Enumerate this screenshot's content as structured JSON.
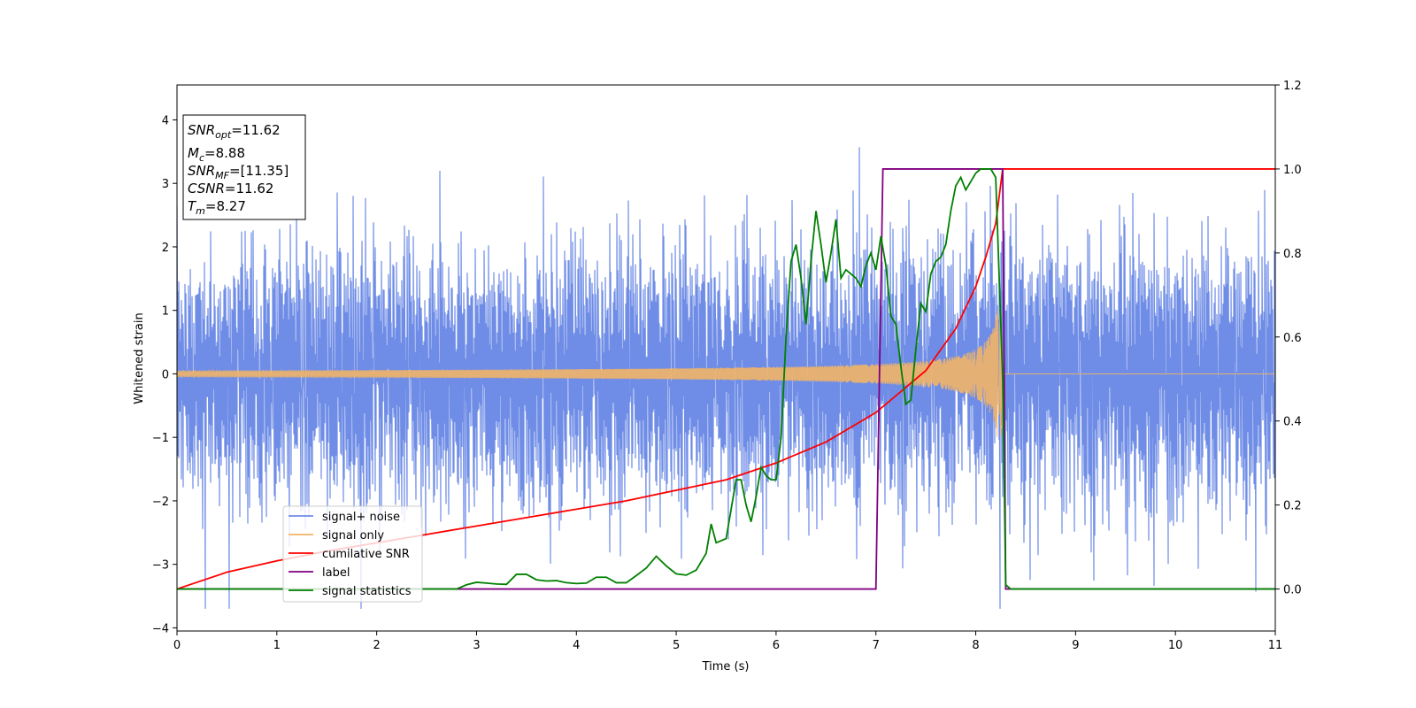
{
  "chart_data": {
    "type": "line",
    "xlabel": "Time (s)",
    "ylabel": "Whitened strain",
    "xlim": [
      0,
      11
    ],
    "ylim_left": [
      -4.05,
      4.55
    ],
    "ylim_right": [
      -0.1,
      1.2
    ],
    "x_ticks": [
      0,
      1,
      2,
      3,
      4,
      5,
      6,
      7,
      8,
      9,
      10,
      11
    ],
    "y_left_ticks": [
      -4,
      -3,
      -2,
      -1,
      0,
      1,
      2,
      3,
      4
    ],
    "y_right_ticks": [
      "0.0",
      "0.2",
      "0.4",
      "0.6",
      "0.8",
      "1.0",
      "1.2"
    ],
    "grid": false,
    "legend_position": "lower-left",
    "colors": {
      "signal_noise": "#6f8de6",
      "signal_only": "#f2b466",
      "cumulative_snr": "#ff0000",
      "label": "#800080",
      "signal_statistics": "#008000"
    },
    "annotation": {
      "lines": [
        {
          "base": "SNR",
          "sub": "opt",
          "value": "=11.62"
        },
        {
          "base": "M",
          "sub": "c",
          "value": "=8.88"
        },
        {
          "base": "SNR",
          "sub": "MF",
          "value": "=[11.35]"
        },
        {
          "base": "CSNR",
          "sub": "",
          "value": "=11.62"
        },
        {
          "base": "T",
          "sub": "m",
          "value": "=8.27"
        }
      ]
    },
    "series": [
      {
        "name": "signal+ noise",
        "axis": "left",
        "description_range": [
          -3.7,
          4.1
        ],
        "noise_std": 1.0,
        "t_end": 11
      },
      {
        "name": "signal only",
        "axis": "left",
        "chirp_merger_time": 8.27,
        "peak_amplitude": 1.0,
        "start_amplitude": 0.05
      },
      {
        "name": "cumilative SNR",
        "axis": "right",
        "x": [
          0,
          0.5,
          1,
          1.5,
          2,
          2.5,
          3,
          3.5,
          4,
          4.5,
          5,
          5.5,
          6,
          6.5,
          7,
          7.5,
          7.8,
          8.0,
          8.1,
          8.2,
          8.27,
          8.3,
          11
        ],
        "y": [
          0.0,
          0.04,
          0.067,
          0.09,
          0.11,
          0.13,
          0.15,
          0.17,
          0.19,
          0.21,
          0.235,
          0.26,
          0.3,
          0.35,
          0.42,
          0.52,
          0.62,
          0.72,
          0.79,
          0.87,
          1.0,
          1.0,
          1.0
        ]
      },
      {
        "name": "label",
        "axis": "right",
        "x": [
          0,
          7.0,
          7.07,
          8.27,
          8.3,
          11
        ],
        "y": [
          0,
          0,
          1,
          1,
          0,
          0
        ]
      },
      {
        "name": "signal statistics",
        "axis": "right",
        "x": [
          0,
          1,
          2,
          2.8,
          2.9,
          3.0,
          3.1,
          3.2,
          3.3,
          3.4,
          3.5,
          3.6,
          3.7,
          3.8,
          3.9,
          4.0,
          4.1,
          4.2,
          4.3,
          4.4,
          4.5,
          4.6,
          4.7,
          4.8,
          4.9,
          5.0,
          5.1,
          5.2,
          5.3,
          5.35,
          5.4,
          5.5,
          5.6,
          5.65,
          5.7,
          5.75,
          5.8,
          5.85,
          5.9,
          5.95,
          6.0,
          6.05,
          6.1,
          6.15,
          6.2,
          6.25,
          6.3,
          6.35,
          6.4,
          6.45,
          6.5,
          6.55,
          6.6,
          6.65,
          6.7,
          6.75,
          6.8,
          6.85,
          6.9,
          6.95,
          7.0,
          7.05,
          7.1,
          7.15,
          7.2,
          7.25,
          7.3,
          7.35,
          7.4,
          7.45,
          7.5,
          7.55,
          7.6,
          7.65,
          7.7,
          7.75,
          7.8,
          7.85,
          7.9,
          7.95,
          8.0,
          8.05,
          8.1,
          8.15,
          8.2,
          8.27,
          8.3,
          8.35,
          8.4,
          9,
          10,
          11
        ],
        "y": [
          0,
          0,
          0,
          0.0,
          0.01,
          0.016,
          0.014,
          0.012,
          0.011,
          0.035,
          0.035,
          0.022,
          0.019,
          0.02,
          0.015,
          0.013,
          0.014,
          0.028,
          0.028,
          0.015,
          0.015,
          0.032,
          0.05,
          0.078,
          0.055,
          0.036,
          0.033,
          0.045,
          0.085,
          0.155,
          0.11,
          0.12,
          0.26,
          0.26,
          0.2,
          0.16,
          0.22,
          0.29,
          0.27,
          0.26,
          0.26,
          0.36,
          0.6,
          0.78,
          0.82,
          0.74,
          0.63,
          0.78,
          0.9,
          0.82,
          0.73,
          0.8,
          0.88,
          0.74,
          0.76,
          0.75,
          0.74,
          0.72,
          0.77,
          0.8,
          0.76,
          0.84,
          0.77,
          0.65,
          0.63,
          0.53,
          0.44,
          0.45,
          0.57,
          0.68,
          0.66,
          0.75,
          0.78,
          0.79,
          0.82,
          0.9,
          0.96,
          0.98,
          0.95,
          0.97,
          0.99,
          1.0,
          1.0,
          1.0,
          0.98,
          0.5,
          0.01,
          0.0,
          0.0,
          0.0,
          0.0,
          0.0
        ]
      }
    ]
  }
}
